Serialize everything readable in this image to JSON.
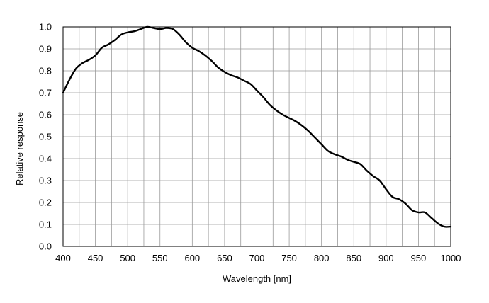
{
  "chart_data": {
    "type": "line",
    "title": "",
    "xlabel": "Wavelength [nm]",
    "ylabel": "Relative response",
    "xlim": [
      400,
      1000
    ],
    "ylim": [
      0,
      1.0
    ],
    "xticks": [
      "400",
      "450",
      "500",
      "550",
      "600",
      "650",
      "700",
      "750",
      "800",
      "850",
      "900",
      "950",
      "1000"
    ],
    "yticks": [
      "0.0",
      "0.1",
      "0.2",
      "0.3",
      "0.4",
      "0.5",
      "0.6",
      "0.7",
      "0.8",
      "0.9",
      "1.0"
    ],
    "x_minor_step": 25,
    "y_minor_step": 0.1,
    "grid": true,
    "series": [
      {
        "color": "#000000",
        "x": [
          400,
          410,
          420,
          430,
          440,
          450,
          460,
          470,
          480,
          490,
          500,
          510,
          520,
          530,
          540,
          550,
          560,
          570,
          580,
          590,
          600,
          610,
          620,
          630,
          640,
          650,
          660,
          670,
          680,
          690,
          700,
          710,
          720,
          730,
          740,
          750,
          760,
          770,
          780,
          790,
          800,
          810,
          820,
          830,
          840,
          850,
          860,
          870,
          880,
          890,
          900,
          910,
          920,
          930,
          940,
          950,
          960,
          970,
          980,
          990,
          1000
        ],
        "y": [
          0.7,
          0.76,
          0.81,
          0.835,
          0.85,
          0.87,
          0.905,
          0.92,
          0.94,
          0.965,
          0.975,
          0.98,
          0.99,
          1.0,
          0.995,
          0.99,
          0.995,
          0.99,
          0.965,
          0.93,
          0.905,
          0.89,
          0.87,
          0.845,
          0.815,
          0.795,
          0.78,
          0.77,
          0.755,
          0.74,
          0.71,
          0.68,
          0.645,
          0.62,
          0.6,
          0.585,
          0.57,
          0.55,
          0.525,
          0.495,
          0.465,
          0.435,
          0.42,
          0.41,
          0.395,
          0.385,
          0.375,
          0.345,
          0.32,
          0.3,
          0.26,
          0.225,
          0.215,
          0.195,
          0.165,
          0.155,
          0.155,
          0.13,
          0.105,
          0.09,
          0.09
        ]
      }
    ]
  }
}
